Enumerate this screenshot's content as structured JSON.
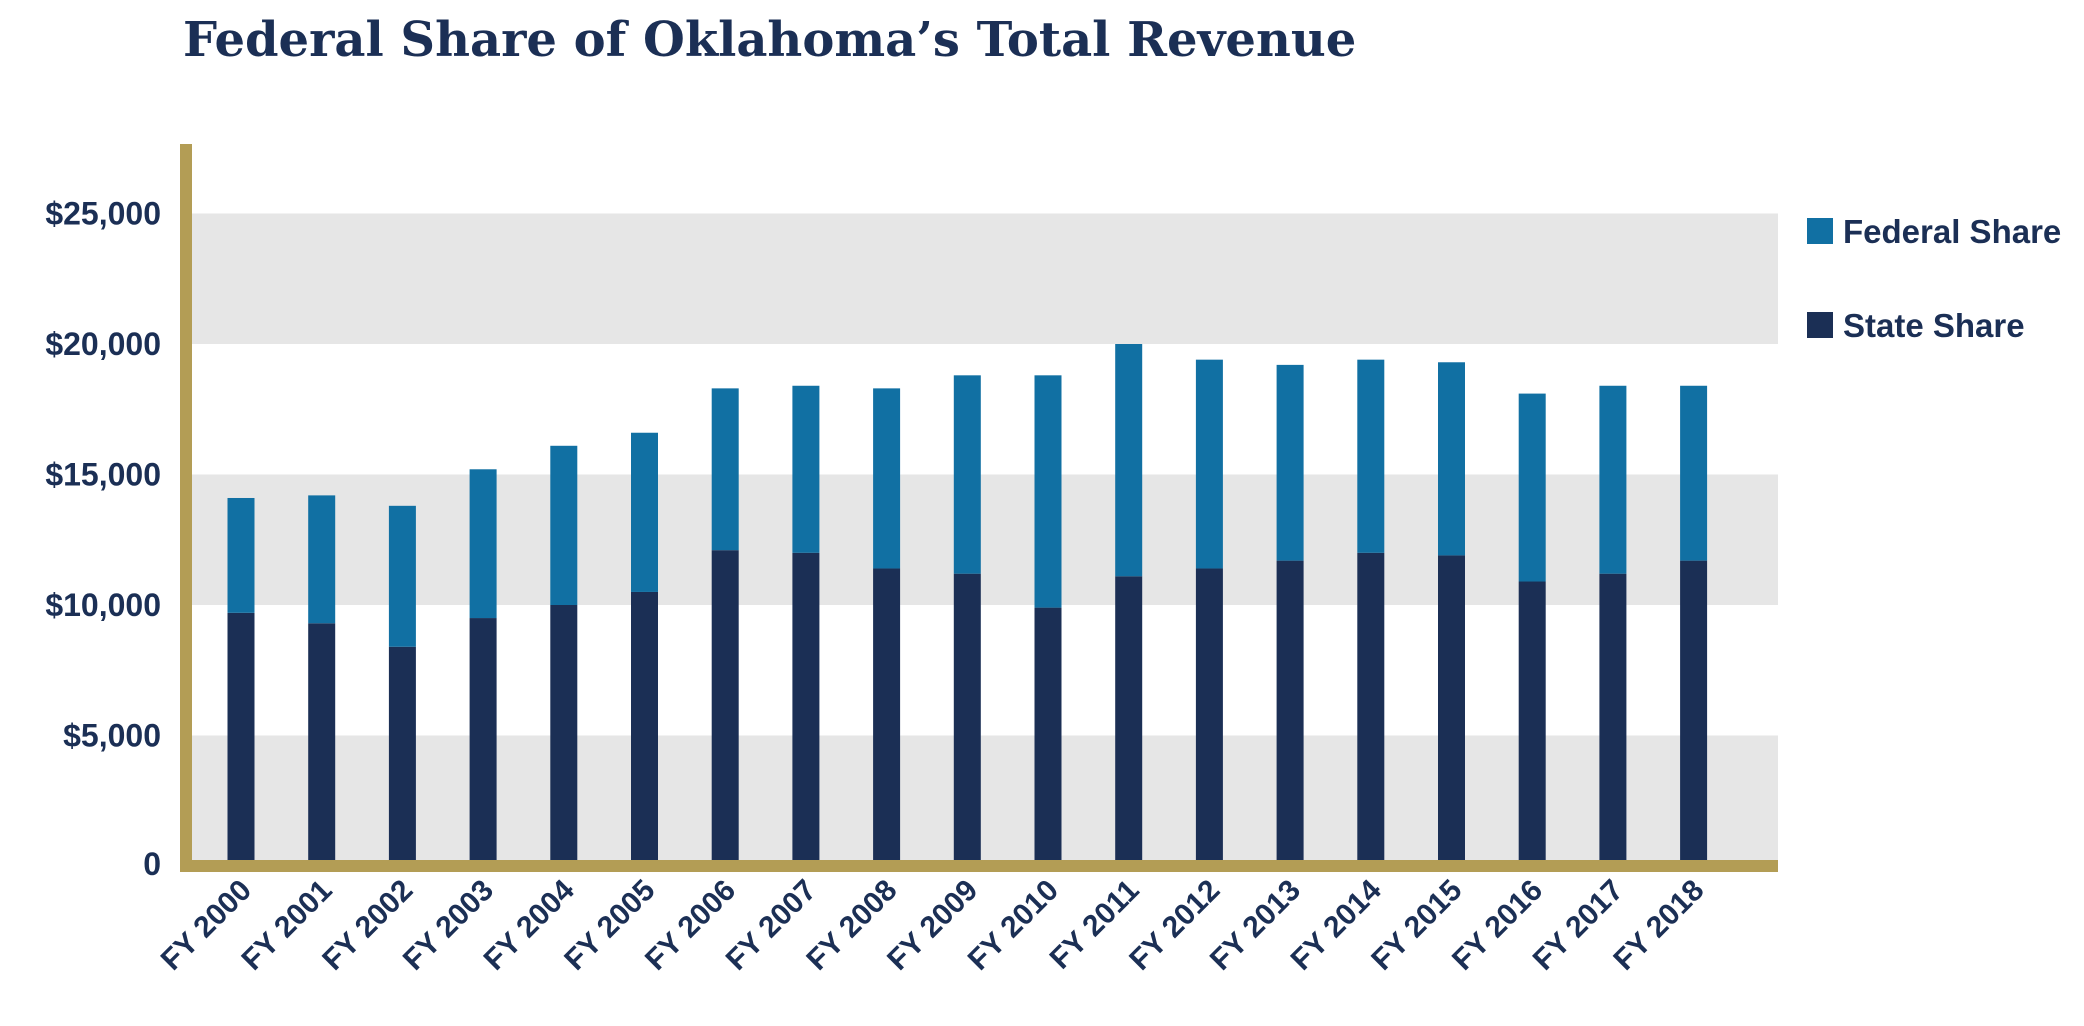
{
  "chart_data": {
    "type": "bar",
    "stacked": true,
    "title": "Federal Share of Oklahoma’s Total Revenue",
    "xlabel": "",
    "ylabel": "",
    "ylim": [
      0,
      27500
    ],
    "yticks": [
      0,
      5000,
      10000,
      15000,
      20000,
      25000
    ],
    "ytick_labels": [
      "0",
      "$5,000",
      "$10,000",
      "$15,000",
      "$20,000",
      "$25,000"
    ],
    "legend_position": "right",
    "categories": [
      "FY 2000",
      "FY 2001",
      "FY 2002",
      "FY 2003",
      "FY 2004",
      "FY 2005",
      "FY 2006",
      "FY 2007",
      "FY 2008",
      "FY 2009",
      "FY 2010",
      "FY 2011",
      "FY 2012",
      "FY 2013",
      "FY 2014",
      "FY 2015",
      "FY 2016",
      "FY 2017",
      "FY 2018"
    ],
    "series": [
      {
        "name": "State Share",
        "color": "#1b2f55",
        "values": [
          9700,
          9300,
          8400,
          9500,
          10000,
          10500,
          12100,
          12000,
          11400,
          11200,
          9900,
          11100,
          11400,
          11700,
          12000,
          11900,
          10900,
          11200,
          11700
        ]
      },
      {
        "name": "Federal Share",
        "color": "#1170a3",
        "values": [
          4400,
          4900,
          5400,
          5700,
          6100,
          6100,
          6200,
          6400,
          6900,
          7600,
          8900,
          8900,
          8000,
          7500,
          7400,
          7400,
          7200,
          7200,
          6700
        ]
      }
    ],
    "legend_order": [
      "Federal Share",
      "State Share"
    ],
    "band_color": "#e6e6e6",
    "axis_color": "#b39d55"
  }
}
